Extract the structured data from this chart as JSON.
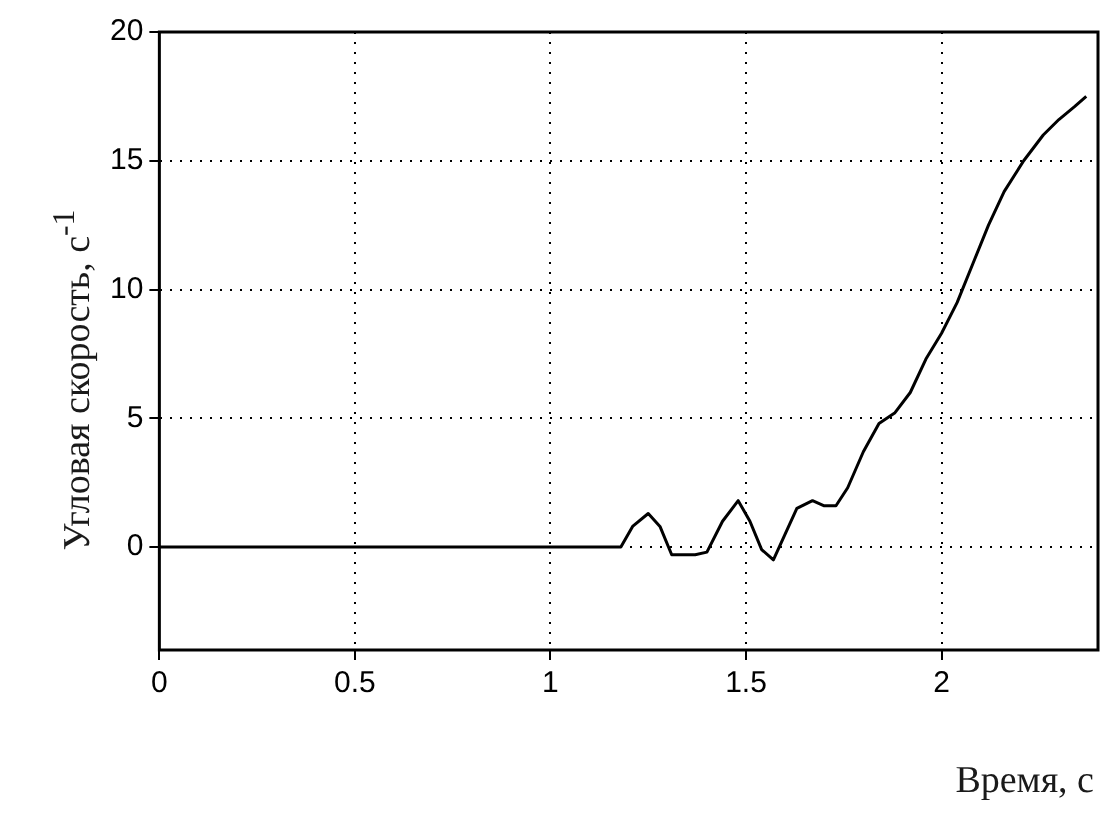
{
  "chart_data": {
    "type": "line",
    "xlabel": "Время, с",
    "ylabel": "Угловая скорость, с$^{-1}$",
    "x": [
      0,
      0.5,
      1,
      1.18,
      1.21,
      1.25,
      1.28,
      1.31,
      1.37,
      1.4,
      1.44,
      1.48,
      1.51,
      1.54,
      1.57,
      1.6,
      1.63,
      1.67,
      1.7,
      1.73,
      1.76,
      1.8,
      1.84,
      1.88,
      1.92,
      1.96,
      2.0,
      2.04,
      2.08,
      2.12,
      2.16,
      2.21,
      2.26,
      2.3,
      2.34,
      2.37
    ],
    "series": [
      {
        "color": "#000000",
        "values": [
          0,
          0,
          0,
          0,
          0.8,
          1.3,
          0.8,
          -0.3,
          -0.3,
          -0.2,
          1.0,
          1.8,
          1.0,
          -0.1,
          -0.5,
          0.5,
          1.5,
          1.8,
          1.6,
          1.6,
          2.3,
          3.7,
          4.8,
          5.2,
          6.0,
          7.3,
          8.3,
          9.5,
          11.0,
          12.5,
          13.8,
          15.0,
          16.0,
          16.6,
          17.1,
          17.5
        ]
      }
    ],
    "xlim": [
      0,
      2.4
    ],
    "xticks": [
      0,
      0.5,
      1,
      1.5,
      2
    ],
    "ylim": [
      -4,
      20
    ],
    "yticks": [
      0,
      5,
      10,
      15,
      20
    ],
    "grid": true,
    "marker": "none",
    "line_style": "solid"
  }
}
